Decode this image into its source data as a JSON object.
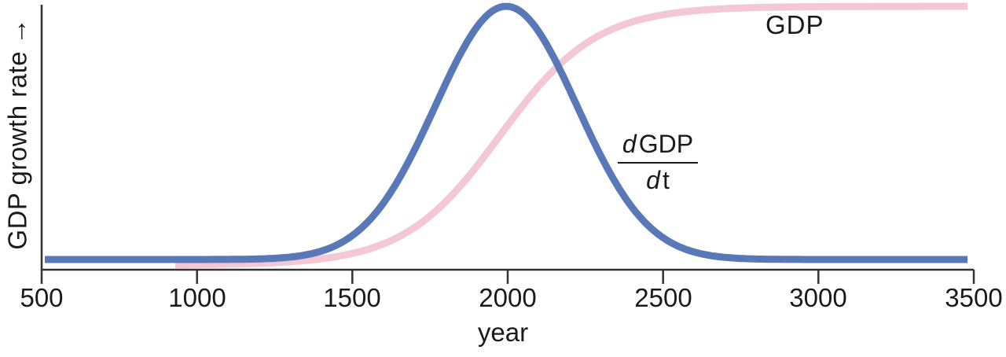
{
  "chart_data": {
    "type": "line",
    "title": "",
    "xlabel": "year",
    "ylabel": "GDP growth rate",
    "x_range": [
      500,
      3500
    ],
    "x_ticks": [
      500,
      1000,
      1500,
      2000,
      2500,
      3000,
      3500
    ],
    "y_axis": {
      "numeric_scale_shown": false,
      "arrow_direction": "up"
    },
    "grid": false,
    "legend_position": "inline-annotations",
    "series": [
      {
        "name": "GDP",
        "annotation": "GDP",
        "shape": "logistic",
        "color": "#f4c7d5",
        "params": {
          "center_year": 1975,
          "scale_years": 155,
          "start_year": 930,
          "end_year": 3480
        },
        "x": [
          500,
          750,
          1000,
          1250,
          1500,
          1750,
          2000,
          2250,
          2500,
          2750,
          3000,
          3250,
          3500
        ],
        "values": [
          0.0,
          0.0004,
          0.002,
          0.009,
          0.045,
          0.19,
          0.54,
          0.86,
          0.97,
          0.993,
          0.999,
          1.0,
          1.0
        ]
      },
      {
        "name": "dGDP/dt",
        "annotation": "dGDP/dt",
        "shape": "gaussian",
        "color": "#5878b7",
        "params": {
          "center_year": 1995,
          "sigma_years": 228,
          "start_year": 510,
          "end_year": 3480
        },
        "x": [
          500,
          750,
          1000,
          1250,
          1500,
          1750,
          2000,
          2250,
          2500,
          2750,
          3000,
          3250,
          3500
        ],
        "values": [
          0.0,
          0.0,
          0.0001,
          0.005,
          0.094,
          0.56,
          1.0,
          0.54,
          0.086,
          0.004,
          0.0001,
          0.0,
          0.0
        ]
      }
    ]
  },
  "labels": {
    "y_axis_text": "GDP growth rate",
    "y_axis_arrow": "→",
    "x_axis": "year",
    "gdp_annotation": "GDP",
    "derivative": {
      "d_numerator": "d",
      "numerator": "GDP",
      "d_denominator": "d",
      "denominator": "t"
    }
  },
  "axis": {
    "ticks": [
      "500",
      "1000",
      "1500",
      "2000",
      "2500",
      "3000",
      "3500"
    ],
    "color": "#333333"
  },
  "colors": {
    "blue_curve": "#5878b7",
    "pink_curve": "#f4c7d5",
    "text": "#1a1a1a",
    "background": "#ffffff"
  }
}
